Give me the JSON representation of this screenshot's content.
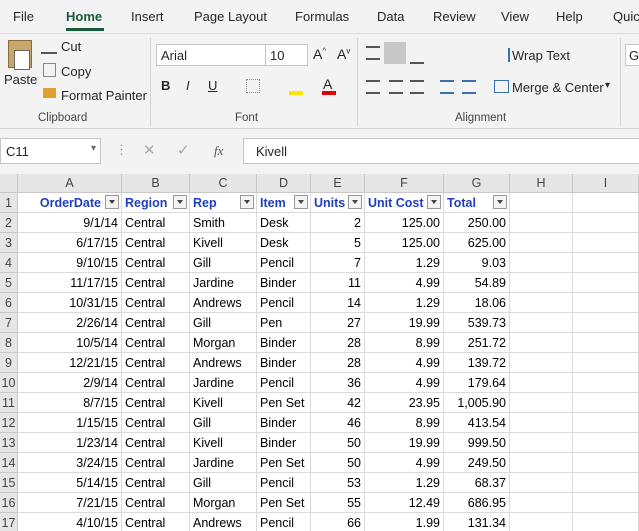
{
  "tabs": [
    "File",
    "Home",
    "Insert",
    "Page Layout",
    "Formulas",
    "Data",
    "Review",
    "View",
    "Help",
    "Quic"
  ],
  "ribbon": {
    "clipboard": {
      "paste": "Paste",
      "cut": "Cut",
      "copy": "Copy",
      "format_painter": "Format Painter",
      "label": "Clipboard"
    },
    "font": {
      "name": "Arial",
      "size": "10",
      "label": "Font"
    },
    "alignment": {
      "wrap_text": "Wrap Text",
      "merge_center": "Merge & Center",
      "label": "Alignment"
    },
    "number": {
      "format": "G"
    }
  },
  "formula_bar": {
    "name_box": "C11",
    "fx": "fx",
    "content": "Kivell"
  },
  "grid": {
    "columns": [
      "A",
      "B",
      "C",
      "D",
      "E",
      "F",
      "G",
      "H",
      "I"
    ],
    "rows": [
      "1",
      "2",
      "3",
      "4",
      "5",
      "6",
      "7",
      "8",
      "9",
      "10",
      "11",
      "12",
      "13",
      "14",
      "15",
      "16",
      "17"
    ],
    "header": [
      "OrderDate",
      "Region",
      "Rep",
      "Item",
      "Units",
      "Unit Cost",
      "Total"
    ],
    "cells": [
      [
        "9/1/14",
        "Central",
        "Smith",
        "Desk",
        "2",
        "125.00",
        "250.00"
      ],
      [
        "6/17/15",
        "Central",
        "Kivell",
        "Desk",
        "5",
        "125.00",
        "625.00"
      ],
      [
        "9/10/15",
        "Central",
        "Gill",
        "Pencil",
        "7",
        "1.29",
        "9.03"
      ],
      [
        "11/17/15",
        "Central",
        "Jardine",
        "Binder",
        "11",
        "4.99",
        "54.89"
      ],
      [
        "10/31/15",
        "Central",
        "Andrews",
        "Pencil",
        "14",
        "1.29",
        "18.06"
      ],
      [
        "2/26/14",
        "Central",
        "Gill",
        "Pen",
        "27",
        "19.99",
        "539.73"
      ],
      [
        "10/5/14",
        "Central",
        "Morgan",
        "Binder",
        "28",
        "8.99",
        "251.72"
      ],
      [
        "12/21/15",
        "Central",
        "Andrews",
        "Binder",
        "28",
        "4.99",
        "139.72"
      ],
      [
        "2/9/14",
        "Central",
        "Jardine",
        "Pencil",
        "36",
        "4.99",
        "179.64"
      ],
      [
        "8/7/15",
        "Central",
        "Kivell",
        "Pen Set",
        "42",
        "23.95",
        "1,005.90"
      ],
      [
        "1/15/15",
        "Central",
        "Gill",
        "Binder",
        "46",
        "8.99",
        "413.54"
      ],
      [
        "1/23/14",
        "Central",
        "Kivell",
        "Binder",
        "50",
        "19.99",
        "999.50"
      ],
      [
        "3/24/15",
        "Central",
        "Jardine",
        "Pen Set",
        "50",
        "4.99",
        "249.50"
      ],
      [
        "5/14/15",
        "Central",
        "Gill",
        "Pencil",
        "53",
        "1.29",
        "68.37"
      ],
      [
        "7/21/15",
        "Central",
        "Morgan",
        "Pen Set",
        "55",
        "12.49",
        "686.95"
      ],
      [
        "4/10/15",
        "Central",
        "Andrews",
        "Pencil",
        "66",
        "1.99",
        "131.34"
      ]
    ]
  }
}
